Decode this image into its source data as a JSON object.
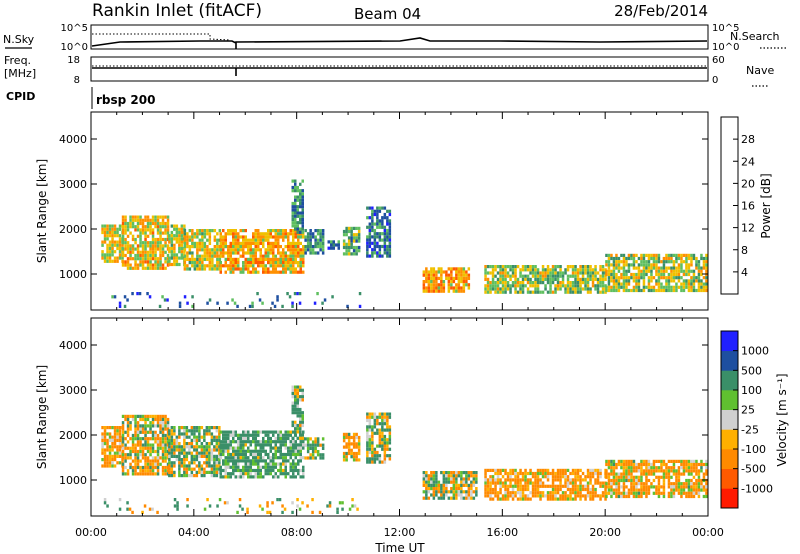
{
  "header": {
    "station": "Rankin Inlet (fitACF)",
    "beam": "Beam 04",
    "date": "28/Feb/2014"
  },
  "top_panels": {
    "nsky_label": "N.Sky",
    "nsky_ticks": [
      "10^5",
      "10^0"
    ],
    "nsearch_label": "N.Search",
    "nsearch_ticks": [
      "10^5",
      "10^0"
    ],
    "freq_label_1": "Freq.",
    "freq_label_2": "[MHz]",
    "freq_ticks": [
      "18",
      "8"
    ],
    "nave_label": "Nave",
    "nave_ticks": [
      "60",
      "0"
    ],
    "cpid_label": "CPID",
    "cpid_value": "rbsp 200"
  },
  "colors": {
    "power_scale": [
      "#2020ff",
      "#1e4fa0",
      "#3a8f68",
      "#5fbf5f",
      "#f0c000",
      "#ff9000",
      "#ff5a00",
      "#ff1a00"
    ],
    "velocity_scale": [
      "#ff1a00",
      "#ff5a00",
      "#ff8a00",
      "#ffb000",
      "#d0d0d0",
      "#60c030",
      "#3a8f68",
      "#1e4fa0",
      "#2020ff"
    ]
  },
  "chart_data": [
    {
      "type": "heatmap",
      "name": "power-panel",
      "ylabel": "Slant Range [km]",
      "yticks": [
        "1000",
        "2000",
        "3000",
        "4000"
      ],
      "ylim": [
        200,
        4600
      ],
      "xlim": [
        0,
        24
      ],
      "colorbar": {
        "label": "Power [dB]",
        "ticks": [
          "4",
          "8",
          "12",
          "16",
          "20",
          "24",
          "28"
        ],
        "range": [
          0,
          32
        ]
      },
      "regions": [
        {
          "t0": 0.4,
          "t1": 1.2,
          "r0": 1250,
          "r1": 2100,
          "v": 18
        },
        {
          "t0": 1.2,
          "t1": 3.0,
          "r0": 1150,
          "r1": 2300,
          "v": 19
        },
        {
          "t0": 3.0,
          "t1": 3.6,
          "r0": 1200,
          "r1": 2100,
          "v": 16
        },
        {
          "t0": 3.6,
          "t1": 5.0,
          "r0": 1100,
          "r1": 2000,
          "v": 17
        },
        {
          "t0": 5.0,
          "t1": 8.3,
          "r0": 1050,
          "r1": 2000,
          "v": 20
        },
        {
          "t0": 7.8,
          "t1": 8.2,
          "r0": 1900,
          "r1": 3100,
          "v": 10
        },
        {
          "t0": 8.3,
          "t1": 9.0,
          "r0": 1500,
          "r1": 2000,
          "v": 10
        },
        {
          "t0": 9.2,
          "t1": 9.6,
          "r0": 1550,
          "r1": 1750,
          "v": 9
        },
        {
          "t0": 9.8,
          "t1": 10.4,
          "r0": 1450,
          "r1": 2050,
          "v": 12
        },
        {
          "t0": 10.7,
          "t1": 11.6,
          "r0": 1400,
          "r1": 2500,
          "v": 8
        },
        {
          "t0": 12.9,
          "t1": 14.7,
          "r0": 620,
          "r1": 1150,
          "v": 21
        },
        {
          "t0": 15.3,
          "t1": 20.0,
          "r0": 600,
          "r1": 1200,
          "v": 15
        },
        {
          "t0": 20.0,
          "t1": 23.9,
          "r0": 650,
          "r1": 1450,
          "v": 16
        },
        {
          "t0": 0.4,
          "t1": 10.5,
          "r0": 250,
          "r1": 600,
          "v": 7
        }
      ]
    },
    {
      "type": "heatmap",
      "name": "velocity-panel",
      "ylabel": "Slant Range [km]",
      "yticks": [
        "1000",
        "2000",
        "3000",
        "4000"
      ],
      "ylim": [
        200,
        4600
      ],
      "xlim": [
        0,
        24
      ],
      "xlabel": "Time UT",
      "xticks": [
        "00:00",
        "04:00",
        "08:00",
        "12:00",
        "16:00",
        "20:00",
        "00:00"
      ],
      "colorbar": {
        "label": "Velocity [m s⁻¹]",
        "ticks": [
          "1000",
          "500",
          "100",
          "25",
          "-25",
          "-100",
          "-500",
          "-1000"
        ],
        "range": [
          -1000,
          1000
        ]
      },
      "regions": [
        {
          "t0": 0.4,
          "t1": 1.2,
          "r0": 1300,
          "r1": 2200,
          "v": -150
        },
        {
          "t0": 1.2,
          "t1": 3.0,
          "r0": 1150,
          "r1": 2450,
          "v": -60
        },
        {
          "t0": 3.0,
          "t1": 5.0,
          "r0": 1100,
          "r1": 2200,
          "v": 60
        },
        {
          "t0": 5.0,
          "t1": 8.3,
          "r0": 1050,
          "r1": 2100,
          "v": 200
        },
        {
          "t0": 7.8,
          "t1": 8.2,
          "r0": 1900,
          "r1": 3100,
          "v": 120
        },
        {
          "t0": 8.3,
          "t1": 9.0,
          "r0": 1500,
          "r1": 1950,
          "v": 80
        },
        {
          "t0": 9.8,
          "t1": 10.4,
          "r0": 1450,
          "r1": 2050,
          "v": -120
        },
        {
          "t0": 10.7,
          "t1": 11.6,
          "r0": 1400,
          "r1": 2500,
          "v": 60
        },
        {
          "t0": 12.9,
          "t1": 15.0,
          "r0": 620,
          "r1": 1200,
          "v": 30
        },
        {
          "t0": 15.3,
          "t1": 20.0,
          "r0": 600,
          "r1": 1250,
          "v": -180
        },
        {
          "t0": 20.0,
          "t1": 23.9,
          "r0": 650,
          "r1": 1450,
          "v": -140
        },
        {
          "t0": 0.4,
          "t1": 10.5,
          "r0": 250,
          "r1": 600,
          "v": 40
        }
      ]
    }
  ]
}
